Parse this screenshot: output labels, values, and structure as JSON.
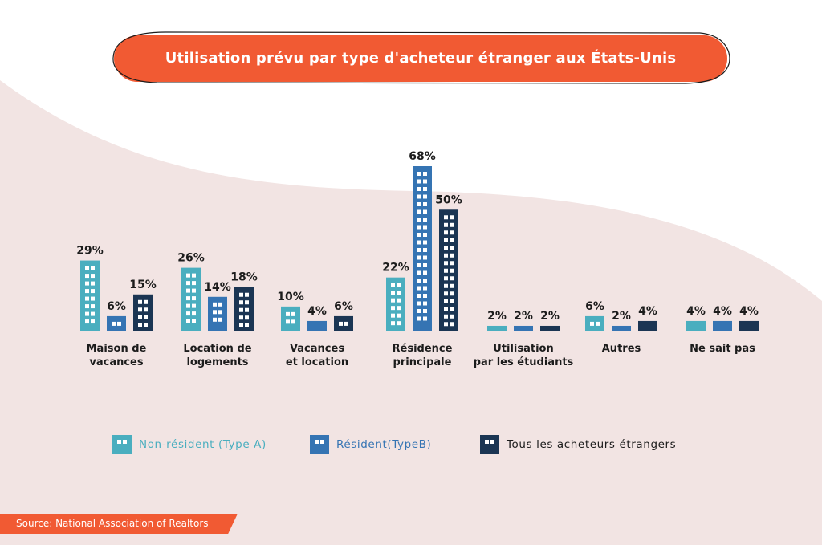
{
  "title": "Utilisation prévu par type d'acheteur étranger aux États-Unis",
  "source": "Source: National Association of Realtors",
  "colors": {
    "typeA": "#4aaebf",
    "typeB": "#3574b3",
    "all": "#1b3553",
    "accent": "#f15a33",
    "backdrop": "#f2e4e3"
  },
  "chart_data": {
    "type": "bar",
    "title": "Utilisation prévu par type d'acheteur étranger aux États-Unis",
    "categories": [
      [
        "Maison de",
        "vacances"
      ],
      [
        "Location de",
        "logements"
      ],
      [
        "Vacances",
        "et location"
      ],
      [
        "Résidence",
        "principale"
      ],
      [
        "Utilisation",
        "par les étudiants"
      ],
      [
        "Autres"
      ],
      [
        "Ne sait pas"
      ]
    ],
    "series": [
      {
        "name": "Non-résident (Type A)",
        "color": "#4aaebf",
        "values": [
          29,
          26,
          10,
          22,
          2,
          6,
          4
        ]
      },
      {
        "name": "Résident(TypeB)",
        "color": "#3574b3",
        "values": [
          6,
          14,
          4,
          68,
          2,
          2,
          4
        ]
      },
      {
        "name": "Tous les acheteurs étrangers",
        "color": "#1b3553",
        "values": [
          15,
          18,
          6,
          50,
          2,
          4,
          4
        ]
      }
    ],
    "value_suffix": "%",
    "ylim": [
      0,
      70
    ],
    "grid": false,
    "legend": "bottom"
  }
}
